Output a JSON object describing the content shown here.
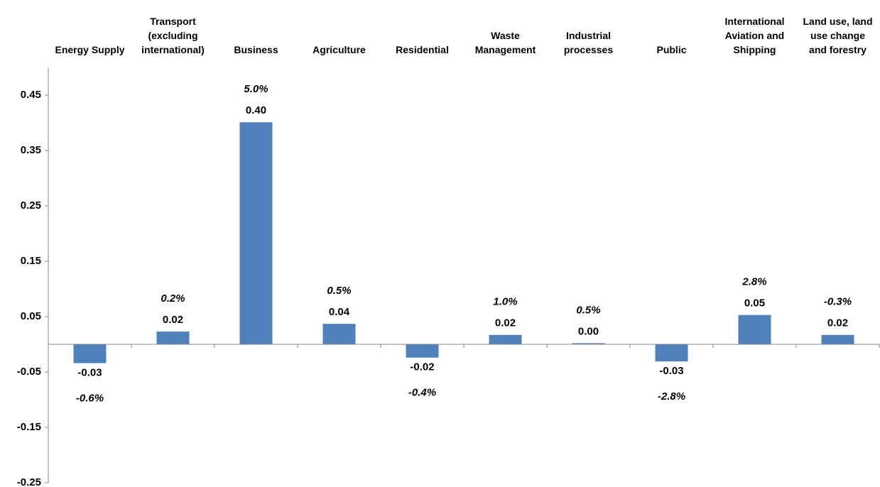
{
  "chart_data": {
    "type": "bar",
    "categories": [
      "Energy Supply",
      "Transport\n(excluding\ninternational)",
      "Business",
      "Agriculture",
      "Residential",
      "Waste\nManagement",
      "Industrial\nprocesses",
      "Public",
      "International\nAviation and\nShipping",
      "Land use, land\nuse change\nand forestry"
    ],
    "values": [
      -0.034,
      0.023,
      0.401,
      0.037,
      -0.024,
      0.017,
      0.002,
      -0.031,
      0.053,
      0.017
    ],
    "value_labels": [
      "-0.03",
      "0.02",
      "0.40",
      "0.04",
      "-0.02",
      "0.02",
      "0.00",
      "-0.03",
      "0.05",
      "0.02"
    ],
    "change_labels": [
      "-0.6%",
      "0.2%",
      "5.0%",
      "0.5%",
      "-0.4%",
      "1.0%",
      "0.5%",
      "-2.8%",
      "2.8%",
      "-0.3%"
    ],
    "color": "#4f81bd",
    "ylim": [
      -0.25,
      0.5
    ],
    "yticks": [
      -0.25,
      -0.15,
      -0.05,
      0.05,
      0.15,
      0.25,
      0.35,
      0.45
    ],
    "grid": false
  }
}
